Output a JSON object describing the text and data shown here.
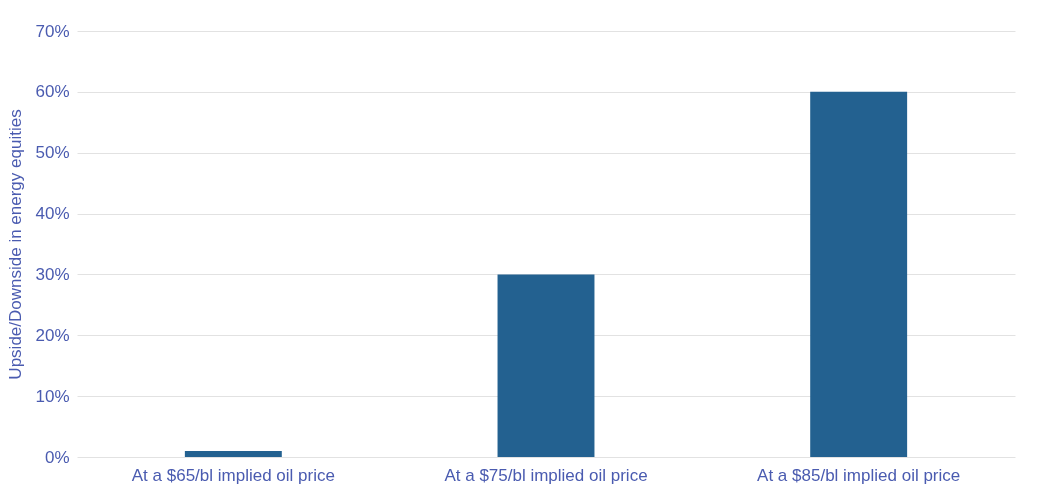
{
  "chart_data": {
    "type": "bar",
    "ylabel": "Upside/Downside in energy equities",
    "categories": [
      "At a $65/bl implied oil price",
      "At a $75/bl implied oil price",
      "At a $85/bl implied oil price"
    ],
    "values": [
      1,
      30,
      60
    ],
    "color": "#236190",
    "ylim": [
      0,
      70
    ],
    "yticks": [
      {
        "value": 0,
        "label": "0%"
      },
      {
        "value": 10,
        "label": "10%"
      },
      {
        "value": 20,
        "label": "20%"
      },
      {
        "value": 30,
        "label": "30%"
      },
      {
        "value": 40,
        "label": "40%"
      },
      {
        "value": 50,
        "label": "50%"
      },
      {
        "value": 60,
        "label": "60%"
      },
      {
        "value": 70,
        "label": "70%"
      }
    ],
    "grid": "y"
  }
}
